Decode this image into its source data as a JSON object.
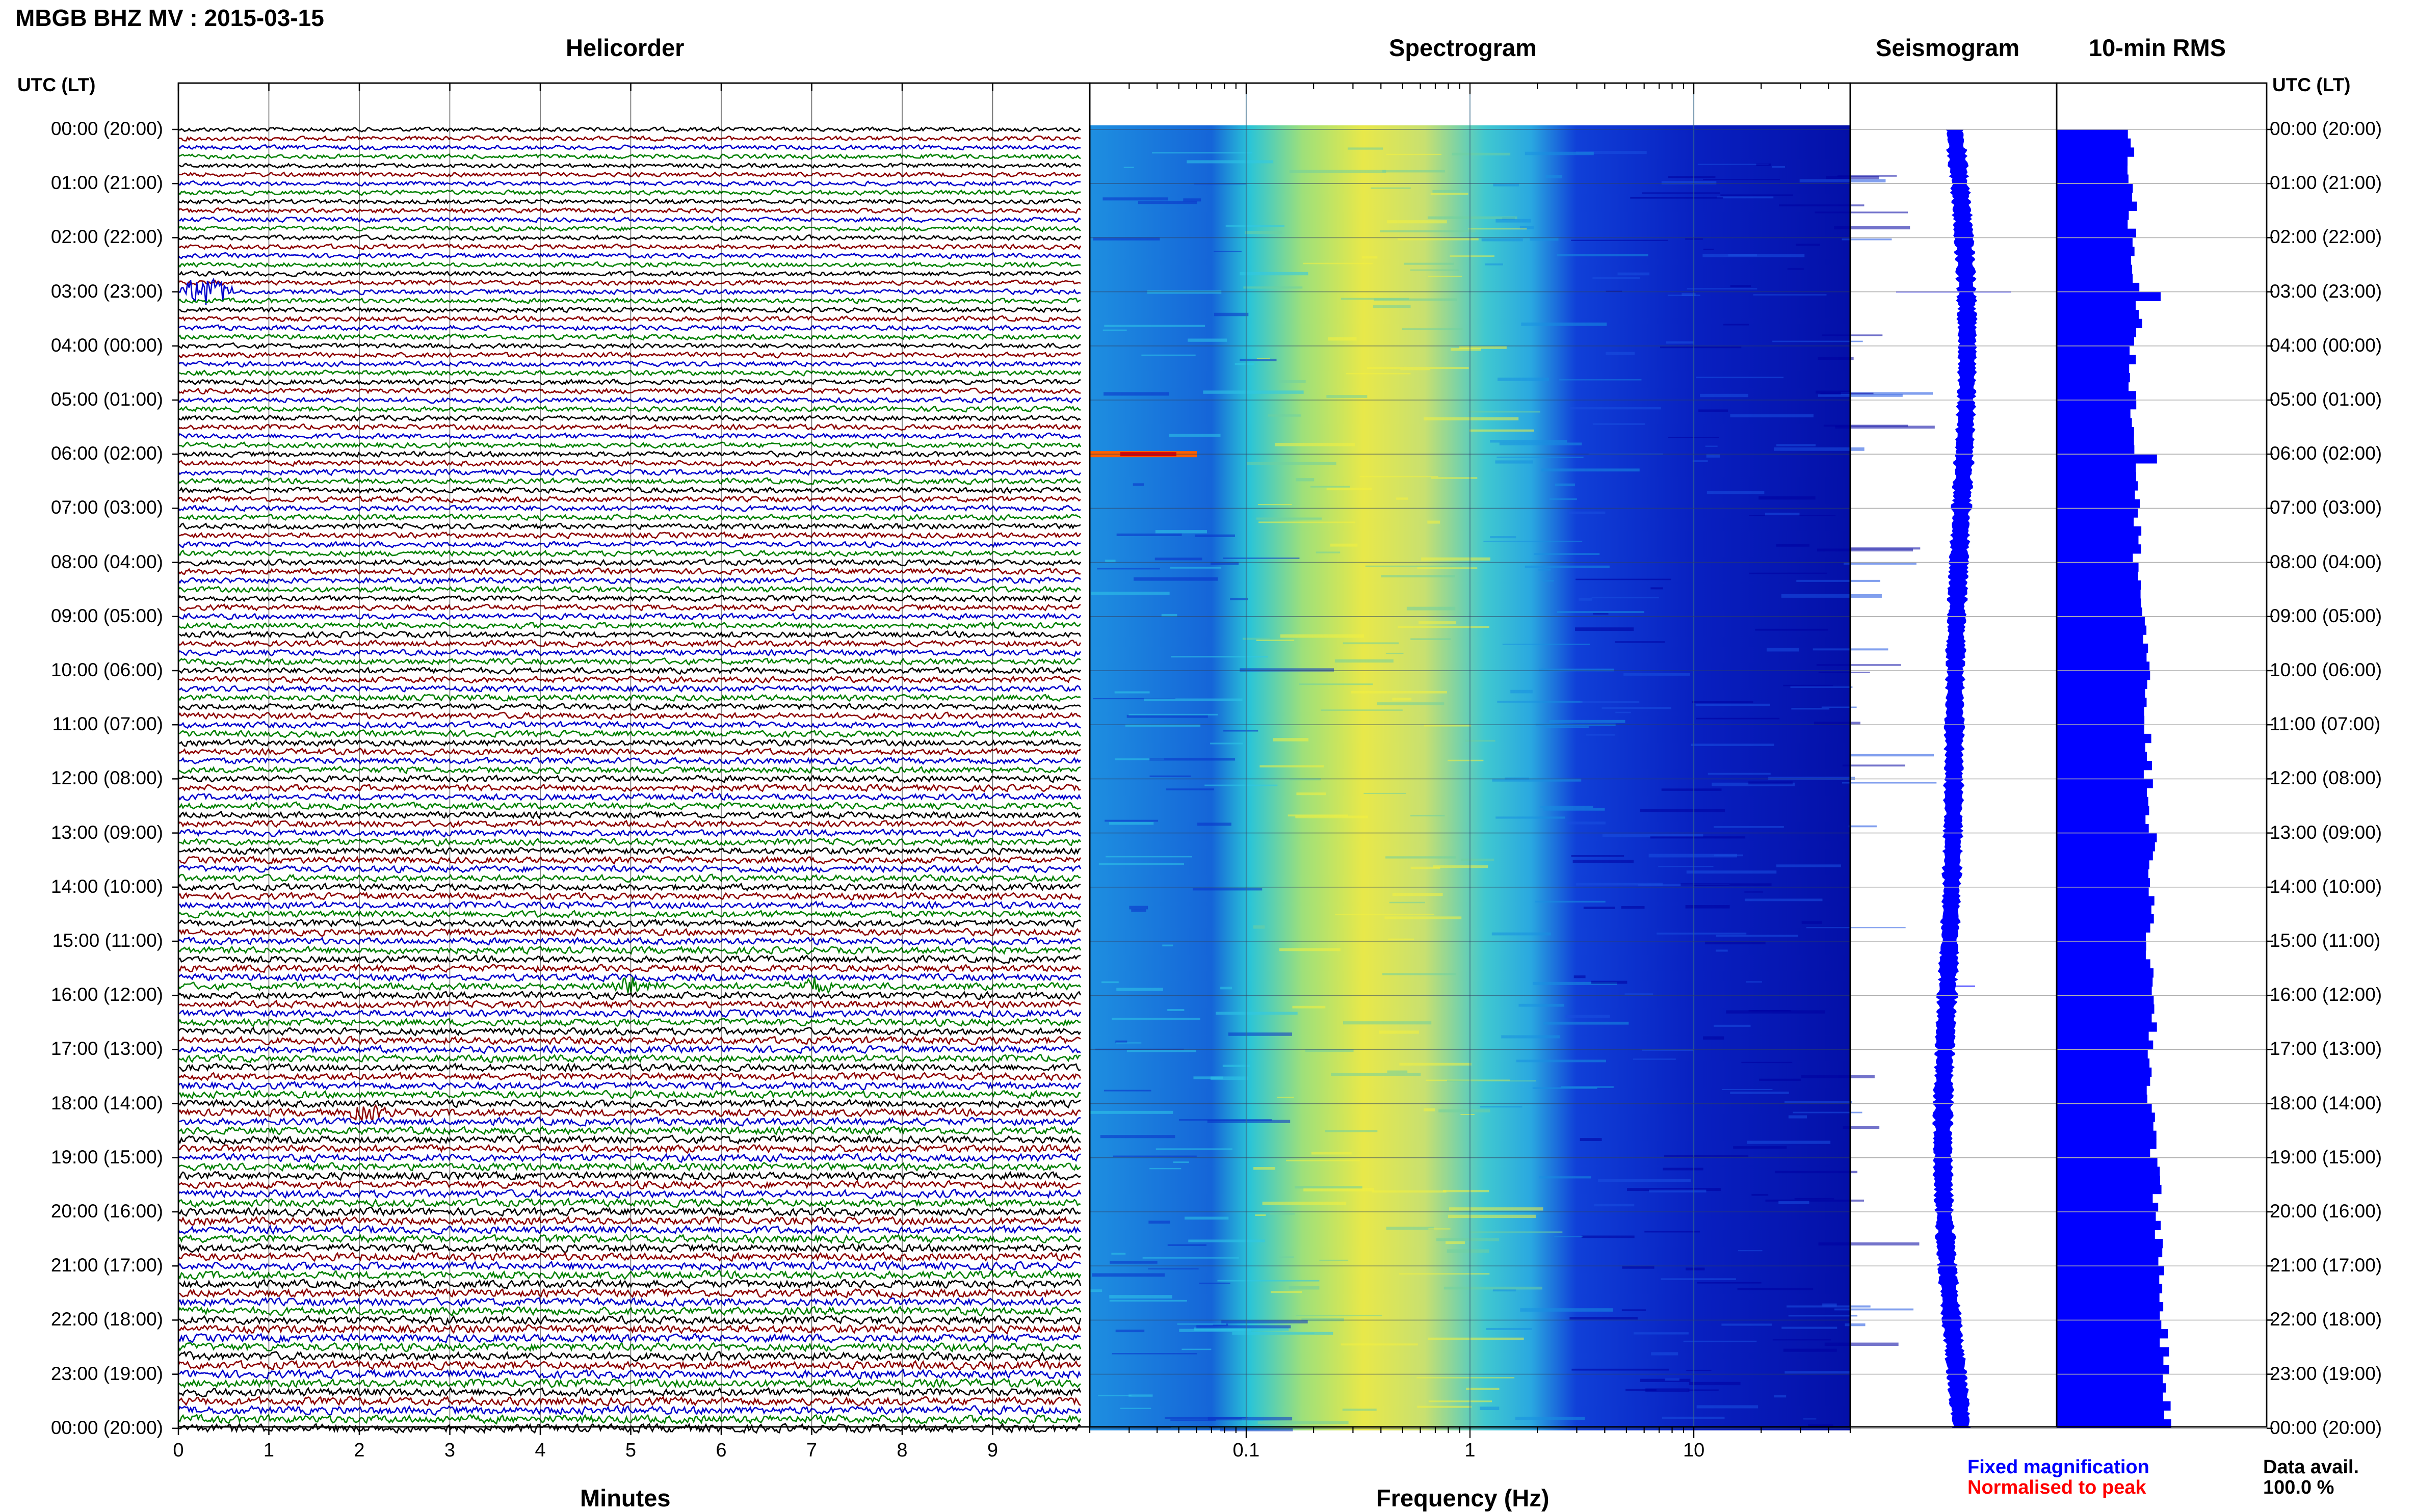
{
  "title": "MBGB BHZ MV : 2015-03-15",
  "panels": {
    "helicorder": "Helicorder",
    "spectrogram": "Spectrogram",
    "seismogram": "Seismogram",
    "rms": "10-min RMS"
  },
  "time_axis_header_left": "UTC (LT)",
  "time_axis_header_right": "UTC (LT)",
  "time_labels": [
    "00:00 (20:00)",
    "01:00 (21:00)",
    "02:00 (22:00)",
    "03:00 (23:00)",
    "04:00 (00:00)",
    "05:00 (01:00)",
    "06:00 (02:00)",
    "07:00 (03:00)",
    "08:00 (04:00)",
    "09:00 (05:00)",
    "10:00 (06:00)",
    "11:00 (07:00)",
    "12:00 (08:00)",
    "13:00 (09:00)",
    "14:00 (10:00)",
    "15:00 (11:00)",
    "16:00 (12:00)",
    "17:00 (13:00)",
    "18:00 (14:00)",
    "19:00 (15:00)",
    "20:00 (16:00)",
    "21:00 (17:00)",
    "22:00 (18:00)",
    "23:00 (19:00)",
    "00:00 (20:00)"
  ],
  "x_labels": {
    "minutes": "Minutes",
    "frequency": "Frequency (Hz)"
  },
  "minute_ticks": [
    "0",
    "1",
    "2",
    "3",
    "4",
    "5",
    "6",
    "7",
    "8",
    "9"
  ],
  "frequency_ticks": [
    "0.1",
    "1",
    "10"
  ],
  "legend": {
    "fixed": "Fixed magnification",
    "normalised": "Normalised to peak",
    "fixed_color": "#0000ff",
    "normalised_color": "#ff0000"
  },
  "data_avail": {
    "label": "Data avail.",
    "value": "100.0 %"
  },
  "colors": {
    "trace_cycle": [
      "#000000",
      "#8b0000",
      "#0000cc",
      "#008000"
    ],
    "rms_bar": "#0000ff",
    "seismogram": "#0000ff",
    "spectrogram_low": "#0000a0",
    "spectrogram_high": "#ff0000"
  },
  "chart_data": [
    {
      "type": "line",
      "title": "Helicorder",
      "xlabel": "Minutes",
      "xlim": [
        0,
        10
      ],
      "rows_per_hour": 6,
      "hours": 24,
      "events": [
        {
          "time": "03:00",
          "minute": 0.3,
          "description": "large transient"
        },
        {
          "time": "15:50",
          "minute": 7.0,
          "description": "transient"
        },
        {
          "time": "15:50",
          "minute": 5.0,
          "description": "small transient"
        },
        {
          "time": "18:10",
          "minute": 2.1,
          "description": "small transient"
        }
      ]
    },
    {
      "type": "heatmap",
      "title": "Spectrogram",
      "xlabel": "Frequency (Hz)",
      "xscale": "log",
      "xlim": [
        0.02,
        50
      ],
      "peak_band_hz": [
        0.2,
        0.5
      ],
      "notable": [
        {
          "time": "06:00",
          "freq_hz": [
            0.02,
            0.08
          ],
          "level": "high"
        }
      ]
    },
    {
      "type": "line",
      "title": "Seismogram",
      "events": [
        {
          "time": "03:00"
        },
        {
          "time": "16:00"
        }
      ]
    },
    {
      "type": "bar",
      "title": "10-min RMS",
      "orientation": "horizontal",
      "bins_per_hour": 6,
      "hourly_relative_values": [
        0.6,
        0.62,
        0.64,
        0.66,
        0.62,
        0.64,
        0.68,
        0.66,
        0.7,
        0.72,
        0.74,
        0.74,
        0.76,
        0.78,
        0.76,
        0.76,
        0.78,
        0.76,
        0.8,
        0.82,
        0.84,
        0.86,
        0.88,
        0.9
      ],
      "peaks": [
        {
          "time": "03:00",
          "value": 0.85
        },
        {
          "time": "06:00",
          "value": 0.82
        }
      ]
    }
  ]
}
